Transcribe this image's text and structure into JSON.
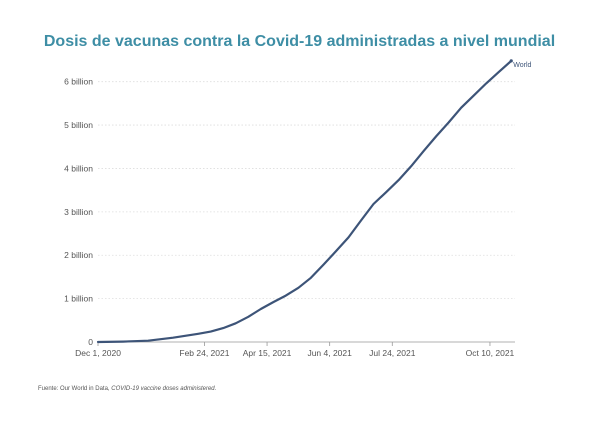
{
  "chart_data": {
    "type": "line",
    "title": "Dosis de vacunas contra la Covid-19 administradas a nivel mundial",
    "xlabel": "",
    "ylabel": "",
    "x_ticks": [
      "Dec 1, 2020",
      "Feb 24, 2021",
      "Apr 15, 2021",
      "Jun 4, 2021",
      "Jul 24, 2021",
      "Oct 10, 2021"
    ],
    "xlim": [
      "2020-12-01",
      "2021-10-30"
    ],
    "y_ticks": [
      "0",
      "1 billion",
      "2 billion",
      "3 billion",
      "4 billion",
      "5 billion",
      "6 billion"
    ],
    "ylim": [
      0,
      6500000000
    ],
    "grid": "horizontal dotted",
    "series": [
      {
        "name": "World",
        "color": "#3d5478",
        "x": [
          "2020-12-01",
          "2020-12-21",
          "2021-01-10",
          "2021-01-30",
          "2021-02-19",
          "2021-03-01",
          "2021-03-11",
          "2021-03-21",
          "2021-03-31",
          "2021-04-10",
          "2021-04-20",
          "2021-04-30",
          "2021-05-10",
          "2021-05-20",
          "2021-05-30",
          "2021-06-09",
          "2021-06-19",
          "2021-06-29",
          "2021-07-09",
          "2021-07-19",
          "2021-07-29",
          "2021-08-08",
          "2021-08-18",
          "2021-08-28",
          "2021-09-07",
          "2021-09-17",
          "2021-09-27",
          "2021-10-07",
          "2021-10-17",
          "2021-10-27"
        ],
        "values": [
          0,
          10000000,
          30000000,
          100000000,
          190000000,
          240000000,
          320000000,
          430000000,
          580000000,
          760000000,
          920000000,
          1070000000,
          1250000000,
          1480000000,
          1780000000,
          2090000000,
          2410000000,
          2800000000,
          3180000000,
          3450000000,
          3730000000,
          4050000000,
          4400000000,
          4740000000,
          5060000000,
          5400000000,
          5680000000,
          5960000000,
          6220000000,
          6480000000
        ]
      }
    ]
  },
  "footer": {
    "source_prefix": "Fuente: Our World in Data, ",
    "source_italic": "COVID-19 vaccine doses administered."
  }
}
